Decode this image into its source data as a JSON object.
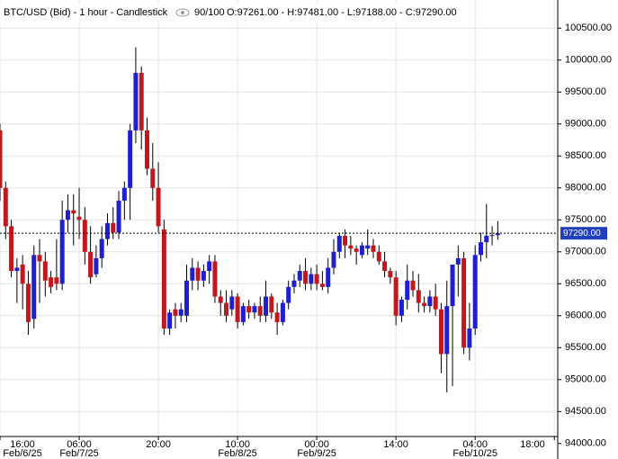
{
  "chart_data": {
    "type": "candlestick",
    "title": "BTC/USD (Bid) - 1 hour - Candlestick",
    "count": "90/100",
    "ohlc_text": "O:97261.00 - H:97481.00 - L:97188.00 - C:97290.00",
    "up_color": "#1f1fcf",
    "down_color": "#c0181c",
    "grid": true,
    "xlim": [
      0,
      98.6
    ],
    "ylim": [
      94110,
      100940
    ],
    "x": [
      0,
      1,
      2,
      3,
      4,
      5,
      6,
      7,
      8,
      9,
      10,
      11,
      12,
      13,
      14,
      15,
      16,
      17,
      18,
      19,
      20,
      21,
      22,
      23,
      24,
      25,
      26,
      27,
      28,
      29,
      30,
      31,
      32,
      33,
      34,
      35,
      36,
      37,
      38,
      39,
      40,
      41,
      42,
      43,
      44,
      45,
      46,
      47,
      48,
      49,
      50,
      51,
      52,
      53,
      54,
      55,
      56,
      57,
      58,
      59,
      60,
      61,
      62,
      63,
      64,
      65,
      66,
      67,
      68,
      69,
      70,
      71,
      72,
      73,
      74,
      75,
      76,
      77,
      78,
      79,
      80,
      81,
      82,
      83,
      84,
      85,
      86,
      87,
      88
    ],
    "open": [
      98900,
      98000,
      97400,
      96700,
      96800,
      96500,
      95950,
      96950,
      96850,
      96600,
      96600,
      96500,
      97500,
      97650,
      97550,
      97500,
      97000,
      96650,
      96900,
      97200,
      97450,
      97300,
      97800,
      98000,
      98900,
      99800,
      98900,
      98300,
      98000,
      97350,
      95800,
      96100,
      96000,
      96000,
      96550,
      96750,
      96550,
      96700,
      96850,
      96300,
      96200,
      96100,
      96300,
      95900,
      96150,
      96050,
      96150,
      96000,
      96300,
      96050,
      95900,
      96200,
      96450,
      96550,
      96700,
      96500,
      96650,
      96500,
      96450,
      96750,
      97000,
      97250,
      97100,
      97050,
      96950,
      97050,
      97100,
      97000,
      96850,
      96700,
      96600,
      96000,
      96250,
      96550,
      96400,
      96200,
      96150,
      96300,
      96100,
      95400,
      96150,
      96800,
      96900,
      95500,
      95800,
      96950,
      97150,
      97250,
      97261
    ],
    "high": [
      99000,
      98100,
      97500,
      96900,
      96950,
      96700,
      97100,
      97200,
      97000,
      96700,
      97200,
      97800,
      97900,
      97900,
      98000,
      97700,
      97400,
      97100,
      97400,
      97600,
      97700,
      97950,
      98100,
      99000,
      100200,
      99900,
      99100,
      98700,
      98400,
      97500,
      96100,
      96200,
      96200,
      96800,
      96900,
      96850,
      96800,
      96950,
      96950,
      96400,
      96400,
      96400,
      96350,
      96200,
      96250,
      96200,
      96300,
      96550,
      96350,
      96200,
      96250,
      96550,
      96650,
      96800,
      96900,
      96750,
      96800,
      96700,
      96900,
      97200,
      97300,
      97350,
      97250,
      97100,
      97150,
      97350,
      97200,
      97100,
      97000,
      96750,
      96700,
      96300,
      96800,
      96700,
      96650,
      96300,
      96400,
      96500,
      96200,
      96550,
      96800,
      97100,
      97000,
      96200,
      97100,
      97300,
      97750,
      97400,
      97481
    ],
    "low": [
      97800,
      97200,
      96600,
      96200,
      96100,
      95700,
      95800,
      96200,
      96300,
      96350,
      96400,
      96400,
      97300,
      97100,
      97200,
      96800,
      96500,
      96600,
      96750,
      97100,
      97200,
      97200,
      97500,
      97500,
      98700,
      98600,
      98200,
      97800,
      97300,
      95700,
      95700,
      95800,
      95900,
      95900,
      96400,
      96400,
      96450,
      96500,
      96200,
      96000,
      95900,
      96000,
      95800,
      95850,
      95950,
      95950,
      95900,
      95900,
      95950,
      95700,
      95850,
      96100,
      96350,
      96450,
      96400,
      96400,
      96400,
      96400,
      96350,
      96650,
      96900,
      96900,
      96950,
      96800,
      96900,
      96950,
      96900,
      96800,
      96600,
      96500,
      95850,
      95900,
      96100,
      96300,
      96050,
      96050,
      96050,
      96000,
      95100,
      94800,
      94900,
      96300,
      95400,
      95300,
      95700,
      96850,
      96900,
      97100,
      97188
    ],
    "close": [
      98000,
      97400,
      96700,
      96750,
      96500,
      95900,
      96950,
      96850,
      96550,
      96450,
      96500,
      97500,
      97650,
      97600,
      97500,
      97000,
      96600,
      96900,
      97200,
      97450,
      97300,
      97800,
      98000,
      98900,
      99800,
      98900,
      98300,
      98000,
      97400,
      95800,
      96050,
      96000,
      96100,
      96550,
      96750,
      96550,
      96700,
      96850,
      96300,
      96200,
      96000,
      96300,
      95900,
      96150,
      96050,
      96150,
      96000,
      96300,
      96050,
      95900,
      96200,
      96450,
      96550,
      96700,
      96500,
      96650,
      96500,
      96450,
      96750,
      97000,
      97250,
      97100,
      97050,
      97000,
      97100,
      97100,
      97000,
      96850,
      96700,
      96600,
      96000,
      96250,
      96550,
      96400,
      96200,
      96150,
      96300,
      96100,
      95400,
      96150,
      96800,
      96900,
      95500,
      95800,
      96950,
      97150,
      97250,
      97261,
      97290
    ],
    "last_price": {
      "value": 97290,
      "label": "97290.00"
    },
    "yticks": [
      {
        "value": 94000,
        "label": "94000.00"
      },
      {
        "value": 94500,
        "label": "94500.00"
      },
      {
        "value": 95000,
        "label": "95000.00"
      },
      {
        "value": 95500,
        "label": "95500.00"
      },
      {
        "value": 96000,
        "label": "96000.00"
      },
      {
        "value": 96500,
        "label": "96500.00"
      },
      {
        "value": 97000,
        "label": "97000.00"
      },
      {
        "value": 97500,
        "label": "97500.00"
      },
      {
        "value": 98000,
        "label": "98000.00"
      },
      {
        "value": 98500,
        "label": "98500.00"
      },
      {
        "value": 99000,
        "label": "99000.00"
      },
      {
        "value": 99500,
        "label": "99500.00"
      },
      {
        "value": 100000,
        "label": "100000.00"
      },
      {
        "value": 100500,
        "label": "100500.00"
      }
    ],
    "xticks": [
      {
        "value": 0,
        "label": "16:00",
        "date": "Feb/6/25"
      },
      {
        "value": 14,
        "label": "06:00",
        "date": "Feb/7/25"
      },
      {
        "value": 28,
        "label": "20:00"
      },
      {
        "value": 42,
        "label": "10:00",
        "date": "Feb/8/25"
      },
      {
        "value": 56,
        "label": "00:00",
        "date": "Feb/9/25"
      },
      {
        "value": 70,
        "label": "14:00"
      },
      {
        "value": 84,
        "label": "04:00",
        "date": "Feb/10/25"
      },
      {
        "value": 98,
        "label": "18:00"
      }
    ]
  }
}
